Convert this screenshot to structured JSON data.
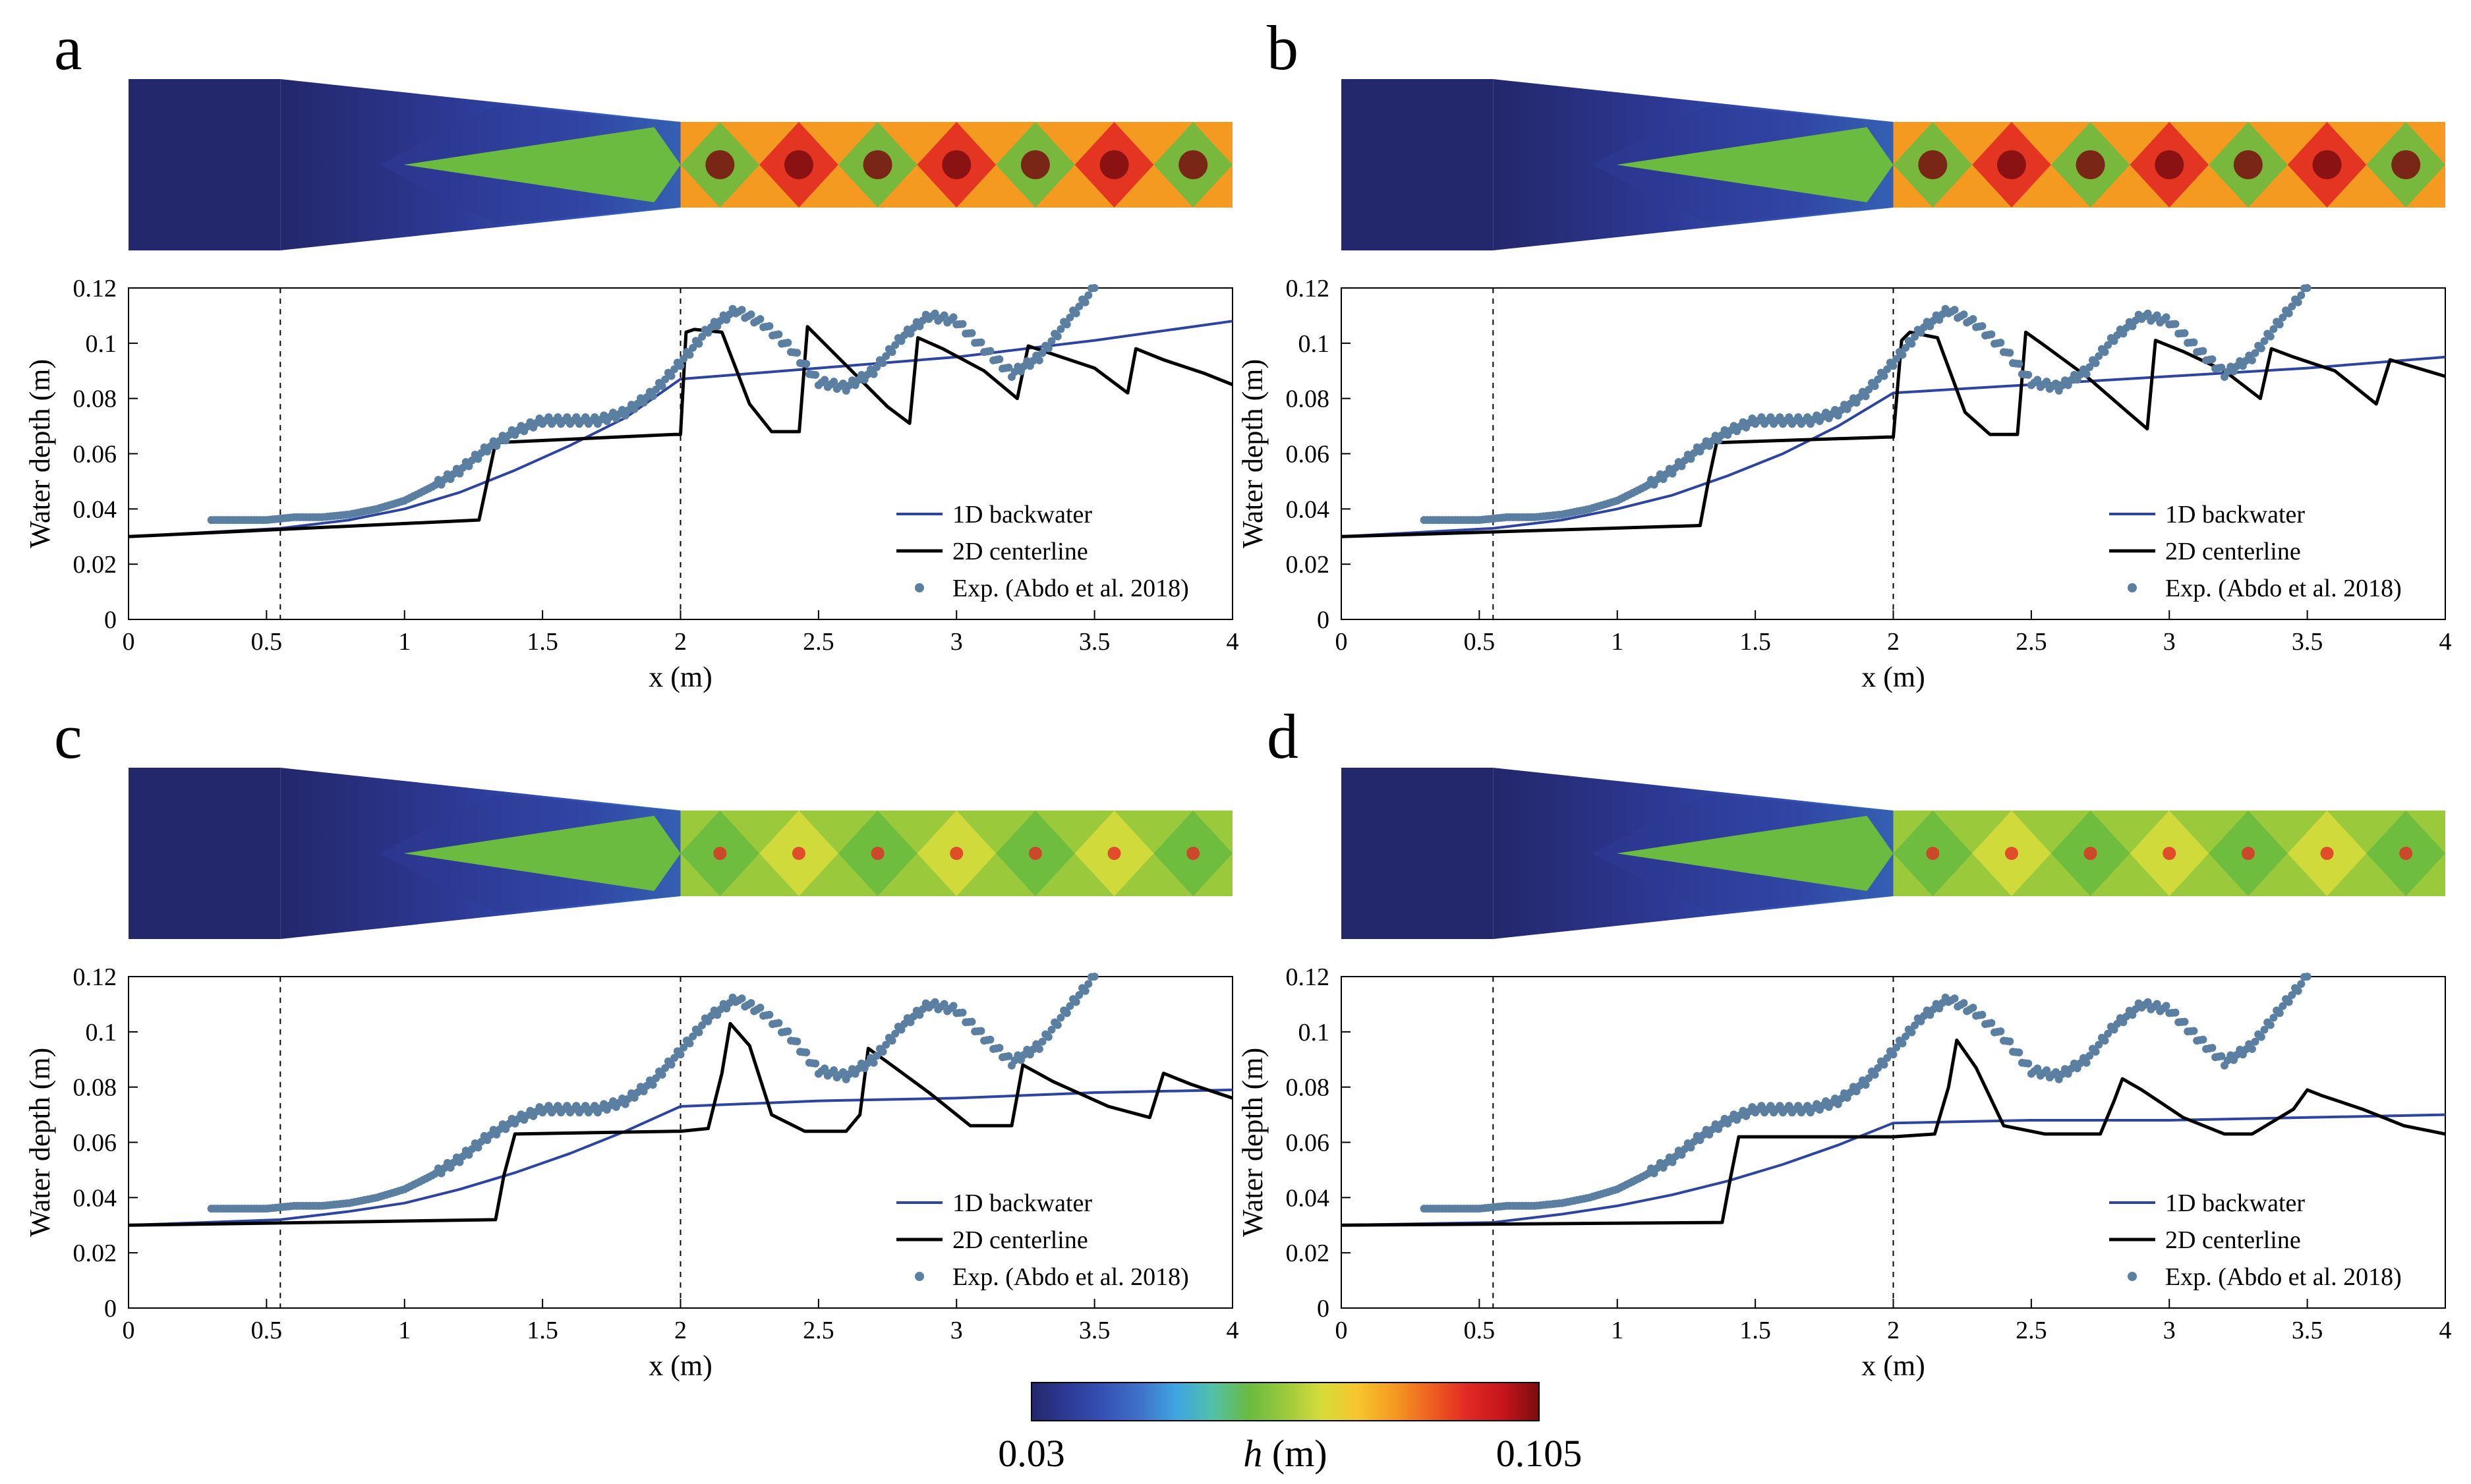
{
  "colorbar": {
    "min_label": "0.03",
    "max_label": "0.105",
    "var_label": "h",
    "unit_label": " (m)",
    "colors": [
      "#23276b",
      "#2d3a96",
      "#3552b5",
      "#3f72c9",
      "#3ea6e0",
      "#52c0a8",
      "#6abb3f",
      "#9bc93c",
      "#d6dc3a",
      "#f7c52c",
      "#f59a21",
      "#ee6121",
      "#e22a24",
      "#c5151b",
      "#7a0c0f"
    ]
  },
  "chart_data": [
    {
      "panel": "a",
      "type": "line",
      "xlabel": "x (m)",
      "ylabel": "Water depth (m)",
      "xlim": [
        0,
        4
      ],
      "ylim": [
        0,
        0.12
      ],
      "xticks": [
        "0",
        "0.5",
        "1",
        "1.5",
        "2",
        "2.5",
        "3",
        "3.5",
        "4"
      ],
      "yticks": [
        "0",
        "0.02",
        "0.04",
        "0.06",
        "0.08",
        "0.1",
        "0.12"
      ],
      "vlines": [
        0.55,
        2.0
      ],
      "legend": [
        "1D backwater",
        "2D centerline",
        "Exp. (Abdo et al. 2018)"
      ],
      "series": [
        {
          "name": "1D backwater",
          "color": "#2e45a0",
          "x": [
            0,
            0.55,
            0.8,
            1.0,
            1.2,
            1.4,
            1.6,
            1.8,
            2.0,
            2.5,
            3.0,
            3.5,
            4.0
          ],
          "values": [
            0.03,
            0.033,
            0.036,
            0.04,
            0.046,
            0.054,
            0.063,
            0.073,
            0.087,
            0.091,
            0.095,
            0.101,
            0.108
          ]
        },
        {
          "name": "2D centerline",
          "color": "#000000",
          "x": [
            0,
            1.27,
            1.3,
            1.33,
            1.98,
            2.0,
            2.02,
            2.05,
            2.15,
            2.25,
            2.33,
            2.43,
            2.46,
            2.5,
            2.6,
            2.75,
            2.83,
            2.86,
            2.95,
            3.1,
            3.22,
            3.26,
            3.35,
            3.5,
            3.62,
            3.65,
            3.75,
            3.9,
            4.0
          ],
          "values": [
            0.03,
            0.036,
            0.05,
            0.064,
            0.067,
            0.067,
            0.104,
            0.105,
            0.104,
            0.078,
            0.068,
            0.068,
            0.106,
            0.102,
            0.092,
            0.077,
            0.071,
            0.102,
            0.098,
            0.09,
            0.08,
            0.099,
            0.096,
            0.091,
            0.082,
            0.098,
            0.094,
            0.089,
            0.085
          ]
        },
        {
          "name": "Exp. (Abdo et al. 2018)",
          "color": "#5b7fa0",
          "x": [
            0.3,
            0.4,
            0.5,
            0.6,
            0.7,
            0.8,
            0.9,
            1.0,
            1.1,
            1.2,
            1.3,
            1.4,
            1.5,
            1.6,
            1.7,
            1.8,
            1.9,
            2.0,
            2.1,
            2.2,
            2.3,
            2.4,
            2.5,
            2.6,
            2.7,
            2.8,
            2.9,
            3.0,
            3.1,
            3.2,
            3.3,
            3.4,
            3.5
          ],
          "values": [
            0.036,
            0.036,
            0.036,
            0.037,
            0.037,
            0.038,
            0.04,
            0.043,
            0.048,
            0.054,
            0.062,
            0.068,
            0.072,
            0.072,
            0.072,
            0.075,
            0.082,
            0.093,
            0.105,
            0.112,
            0.107,
            0.098,
            0.086,
            0.084,
            0.09,
            0.102,
            0.11,
            0.108,
            0.098,
            0.089,
            0.095,
            0.108,
            0.12
          ]
        }
      ]
    },
    {
      "panel": "b",
      "type": "line",
      "xlabel": "x (m)",
      "ylabel": "Water depth (m)",
      "xlim": [
        0,
        4
      ],
      "ylim": [
        0,
        0.12
      ],
      "xticks": [
        "0",
        "0.5",
        "1",
        "1.5",
        "2",
        "2.5",
        "3",
        "3.5",
        "4"
      ],
      "yticks": [
        "0",
        "0.02",
        "0.04",
        "0.06",
        "0.08",
        "0.1",
        "0.12"
      ],
      "vlines": [
        0.55,
        2.0
      ],
      "legend": [
        "1D backwater",
        "2D centerline",
        "Exp. (Abdo et al. 2018)"
      ],
      "series": [
        {
          "name": "1D backwater",
          "color": "#2e45a0",
          "x": [
            0,
            0.55,
            0.8,
            1.0,
            1.2,
            1.4,
            1.6,
            1.8,
            2.0,
            2.5,
            3.0,
            3.5,
            4.0
          ],
          "values": [
            0.03,
            0.033,
            0.036,
            0.04,
            0.045,
            0.052,
            0.06,
            0.07,
            0.082,
            0.085,
            0.088,
            0.091,
            0.095
          ]
        },
        {
          "name": "2D centerline",
          "color": "#000000",
          "x": [
            0,
            1.3,
            1.33,
            1.36,
            1.98,
            2.0,
            2.03,
            2.06,
            2.16,
            2.26,
            2.35,
            2.45,
            2.48,
            2.55,
            2.7,
            2.85,
            2.92,
            2.95,
            3.05,
            3.2,
            3.33,
            3.37,
            3.45,
            3.6,
            3.75,
            3.8,
            3.9,
            4.0
          ],
          "values": [
            0.03,
            0.034,
            0.05,
            0.064,
            0.066,
            0.066,
            0.101,
            0.104,
            0.102,
            0.075,
            0.067,
            0.067,
            0.104,
            0.099,
            0.088,
            0.075,
            0.069,
            0.101,
            0.097,
            0.09,
            0.08,
            0.098,
            0.095,
            0.09,
            0.078,
            0.094,
            0.091,
            0.088
          ]
        },
        {
          "name": "Exp. (Abdo et al. 2018)",
          "color": "#5b7fa0",
          "x": [
            0.3,
            0.4,
            0.5,
            0.6,
            0.7,
            0.8,
            0.9,
            1.0,
            1.1,
            1.2,
            1.3,
            1.4,
            1.5,
            1.6,
            1.7,
            1.8,
            1.9,
            2.0,
            2.1,
            2.2,
            2.3,
            2.4,
            2.5,
            2.6,
            2.7,
            2.8,
            2.9,
            3.0,
            3.1,
            3.2,
            3.3,
            3.4,
            3.5
          ],
          "values": [
            0.036,
            0.036,
            0.036,
            0.037,
            0.037,
            0.038,
            0.04,
            0.043,
            0.048,
            0.054,
            0.062,
            0.068,
            0.072,
            0.072,
            0.072,
            0.075,
            0.082,
            0.093,
            0.105,
            0.112,
            0.107,
            0.098,
            0.086,
            0.084,
            0.09,
            0.102,
            0.11,
            0.108,
            0.098,
            0.089,
            0.095,
            0.108,
            0.12
          ]
        }
      ]
    },
    {
      "panel": "c",
      "type": "line",
      "xlabel": "x (m)",
      "ylabel": "Water depth (m)",
      "xlim": [
        0,
        4
      ],
      "ylim": [
        0,
        0.12
      ],
      "xticks": [
        "0",
        "0.5",
        "1",
        "1.5",
        "2",
        "2.5",
        "3",
        "3.5",
        "4"
      ],
      "yticks": [
        "0",
        "0.02",
        "0.04",
        "0.06",
        "0.08",
        "0.1",
        "0.12"
      ],
      "vlines": [
        0.55,
        2.0
      ],
      "legend": [
        "1D backwater",
        "2D centerline",
        "Exp. (Abdo et al. 2018)"
      ],
      "series": [
        {
          "name": "1D backwater",
          "color": "#2e45a0",
          "x": [
            0,
            0.55,
            0.8,
            1.0,
            1.2,
            1.4,
            1.6,
            1.8,
            2.0,
            2.5,
            3.0,
            3.5,
            4.0
          ],
          "values": [
            0.03,
            0.032,
            0.035,
            0.038,
            0.043,
            0.049,
            0.056,
            0.064,
            0.073,
            0.075,
            0.076,
            0.078,
            0.079
          ]
        },
        {
          "name": "2D centerline",
          "color": "#000000",
          "x": [
            0,
            1.33,
            1.36,
            1.4,
            1.98,
            2.0,
            2.1,
            2.15,
            2.18,
            2.25,
            2.33,
            2.45,
            2.6,
            2.65,
            2.68,
            2.75,
            2.9,
            3.05,
            3.2,
            3.24,
            3.35,
            3.55,
            3.7,
            3.75,
            3.85,
            4.0
          ],
          "values": [
            0.03,
            0.032,
            0.048,
            0.063,
            0.064,
            0.064,
            0.065,
            0.085,
            0.103,
            0.095,
            0.07,
            0.064,
            0.064,
            0.07,
            0.094,
            0.089,
            0.078,
            0.066,
            0.066,
            0.088,
            0.082,
            0.073,
            0.069,
            0.085,
            0.081,
            0.076
          ]
        },
        {
          "name": "Exp. (Abdo et al. 2018)",
          "color": "#5b7fa0",
          "x": [
            0.3,
            0.4,
            0.5,
            0.6,
            0.7,
            0.8,
            0.9,
            1.0,
            1.1,
            1.2,
            1.3,
            1.4,
            1.5,
            1.6,
            1.7,
            1.8,
            1.9,
            2.0,
            2.1,
            2.2,
            2.3,
            2.4,
            2.5,
            2.6,
            2.7,
            2.8,
            2.9,
            3.0,
            3.1,
            3.2,
            3.3,
            3.4,
            3.5
          ],
          "values": [
            0.036,
            0.036,
            0.036,
            0.037,
            0.037,
            0.038,
            0.04,
            0.043,
            0.048,
            0.054,
            0.062,
            0.068,
            0.072,
            0.072,
            0.072,
            0.075,
            0.082,
            0.093,
            0.105,
            0.112,
            0.107,
            0.098,
            0.086,
            0.084,
            0.09,
            0.102,
            0.11,
            0.108,
            0.098,
            0.089,
            0.095,
            0.108,
            0.12
          ]
        }
      ]
    },
    {
      "panel": "d",
      "type": "line",
      "xlabel": "x (m)",
      "ylabel": "Water depth (m)",
      "xlim": [
        0,
        4
      ],
      "ylim": [
        0,
        0.12
      ],
      "xticks": [
        "0",
        "0.5",
        "1",
        "1.5",
        "2",
        "2.5",
        "3",
        "3.5",
        "4"
      ],
      "yticks": [
        "0",
        "0.02",
        "0.04",
        "0.06",
        "0.08",
        "0.1",
        "0.12"
      ],
      "vlines": [
        0.55,
        2.0
      ],
      "legend": [
        "1D backwater",
        "2D centerline",
        "Exp. (Abdo et al. 2018)"
      ],
      "series": [
        {
          "name": "1D backwater",
          "color": "#2e45a0",
          "x": [
            0,
            0.55,
            0.8,
            1.0,
            1.2,
            1.4,
            1.6,
            1.8,
            2.0,
            2.5,
            3.0,
            3.5,
            4.0
          ],
          "values": [
            0.03,
            0.031,
            0.034,
            0.037,
            0.041,
            0.046,
            0.052,
            0.059,
            0.067,
            0.068,
            0.068,
            0.069,
            0.07
          ]
        },
        {
          "name": "2D centerline",
          "color": "#000000",
          "x": [
            0,
            1.38,
            1.41,
            1.44,
            1.98,
            2.0,
            2.15,
            2.2,
            2.23,
            2.3,
            2.4,
            2.55,
            2.75,
            2.8,
            2.83,
            2.9,
            3.05,
            3.2,
            3.3,
            3.45,
            3.5,
            3.55,
            3.7,
            3.85,
            4.0
          ],
          "values": [
            0.03,
            0.031,
            0.047,
            0.062,
            0.062,
            0.062,
            0.063,
            0.08,
            0.097,
            0.087,
            0.066,
            0.063,
            0.063,
            0.075,
            0.083,
            0.079,
            0.069,
            0.063,
            0.063,
            0.072,
            0.079,
            0.077,
            0.072,
            0.066,
            0.063
          ]
        },
        {
          "name": "Exp. (Abdo et al. 2018)",
          "color": "#5b7fa0",
          "x": [
            0.3,
            0.4,
            0.5,
            0.6,
            0.7,
            0.8,
            0.9,
            1.0,
            1.1,
            1.2,
            1.3,
            1.4,
            1.5,
            1.6,
            1.7,
            1.8,
            1.9,
            2.0,
            2.1,
            2.2,
            2.3,
            2.4,
            2.5,
            2.6,
            2.7,
            2.8,
            2.9,
            3.0,
            3.1,
            3.2,
            3.3,
            3.4,
            3.5
          ],
          "values": [
            0.036,
            0.036,
            0.036,
            0.037,
            0.037,
            0.038,
            0.04,
            0.043,
            0.048,
            0.054,
            0.062,
            0.068,
            0.072,
            0.072,
            0.072,
            0.075,
            0.082,
            0.093,
            0.105,
            0.112,
            0.107,
            0.098,
            0.086,
            0.084,
            0.09,
            0.102,
            0.11,
            0.108,
            0.098,
            0.089,
            0.095,
            0.108,
            0.12
          ]
        }
      ]
    }
  ]
}
